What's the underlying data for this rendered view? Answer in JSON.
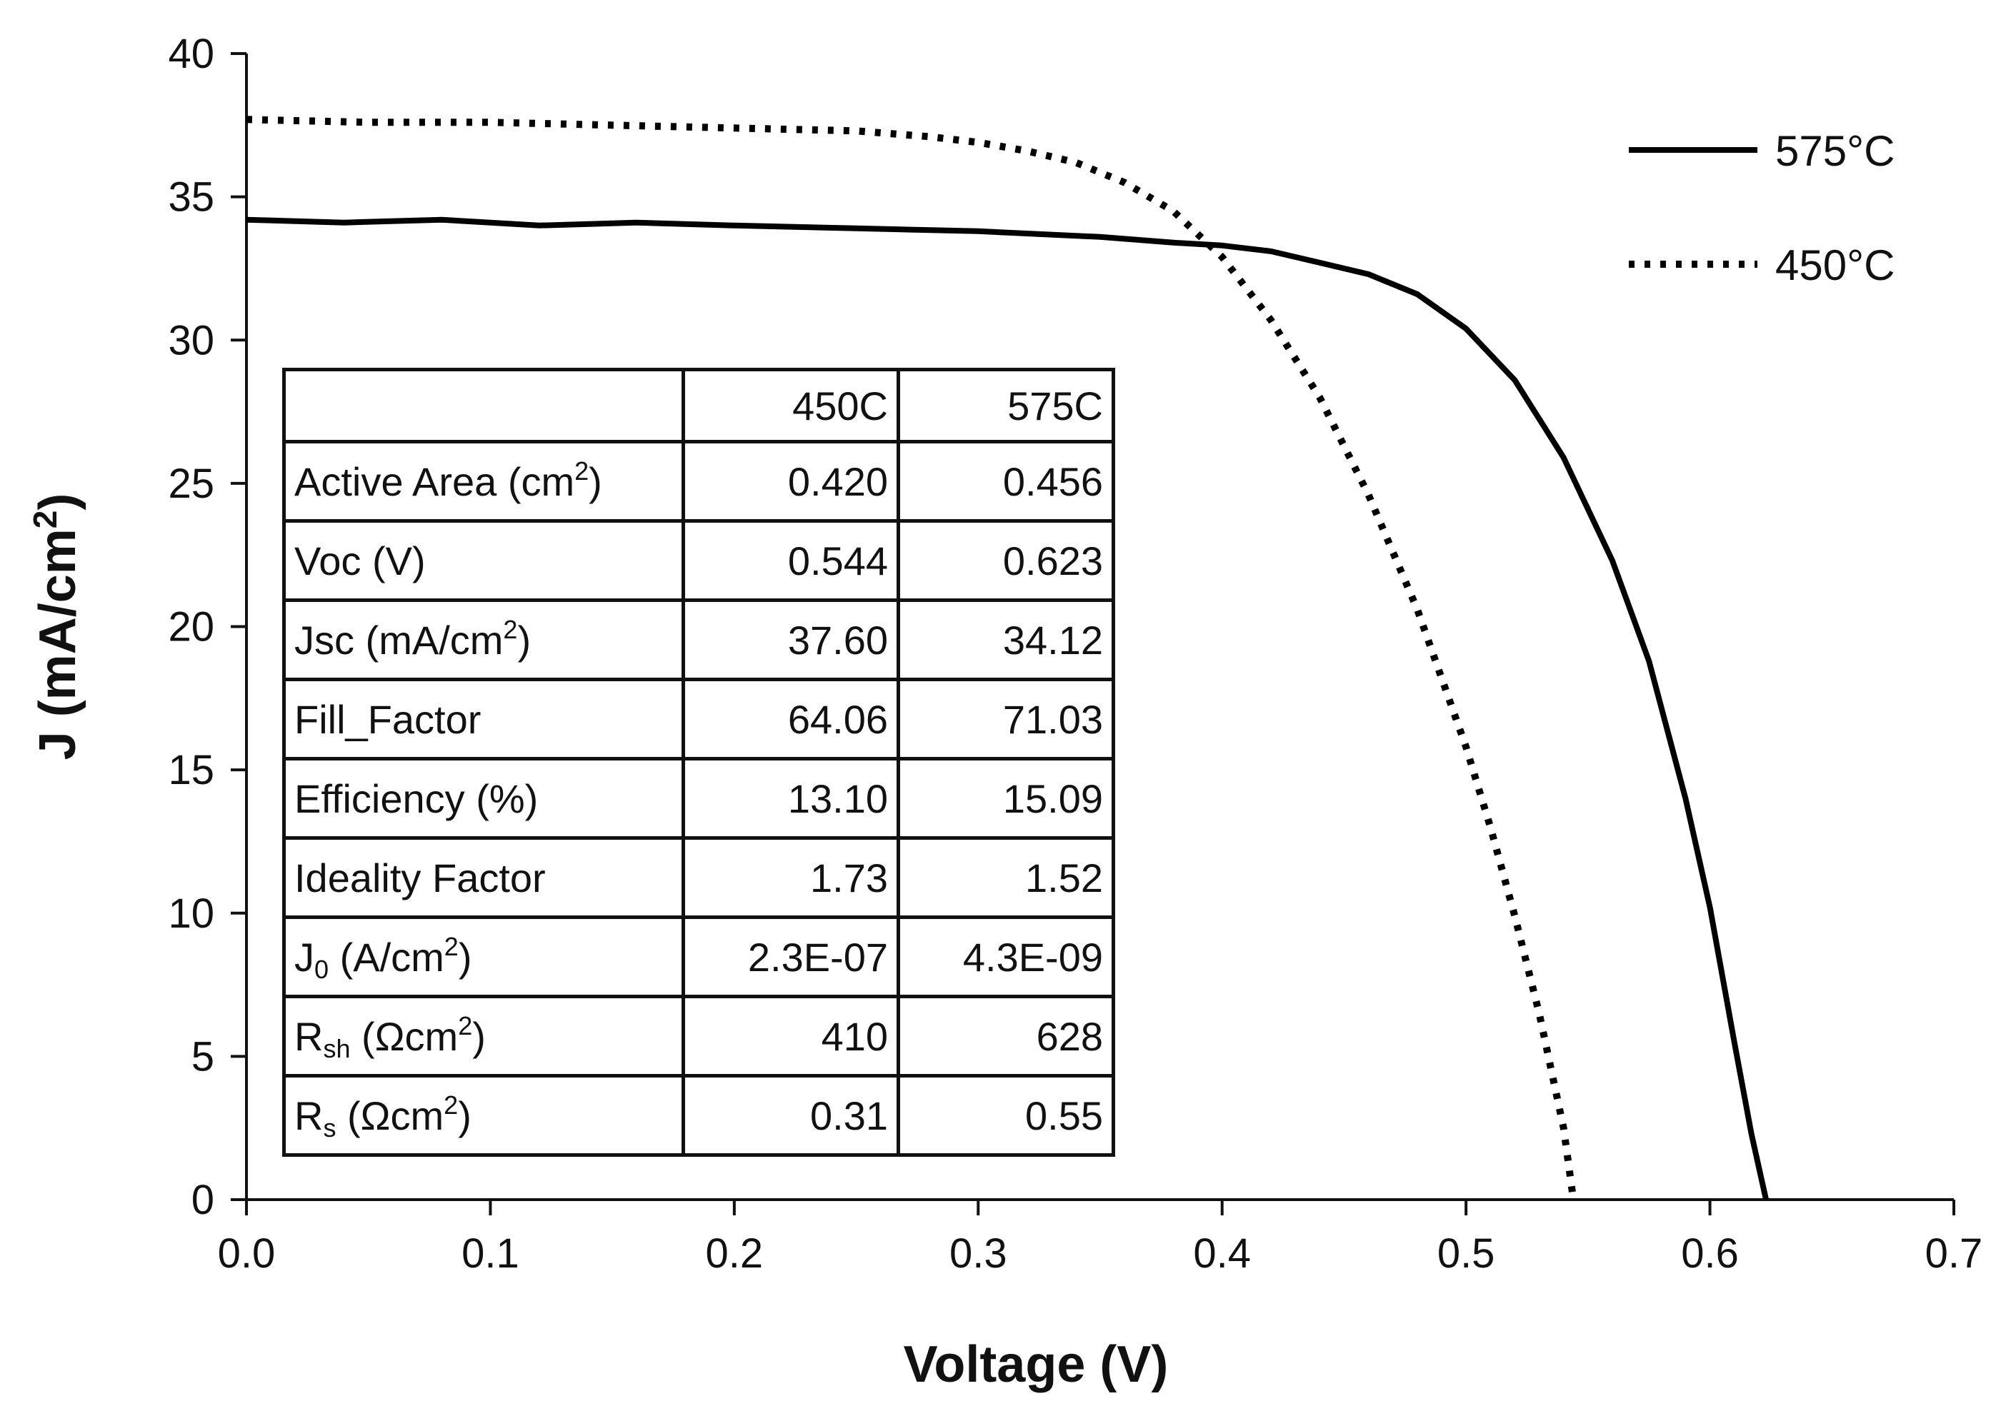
{
  "chart_data": {
    "type": "line",
    "title": "",
    "xlabel": "Voltage (V)",
    "ylabel_parts": {
      "base": "J (mA/cm",
      "sup": "2",
      "end": ")"
    },
    "xlim": [
      0,
      0.7
    ],
    "ylim": [
      0,
      40
    ],
    "x_ticks": [
      "0.0",
      "0.1",
      "0.2",
      "0.3",
      "0.4",
      "0.5",
      "0.6",
      "0.7"
    ],
    "y_ticks": [
      "0",
      "5",
      "10",
      "15",
      "20",
      "25",
      "30",
      "35",
      "40"
    ],
    "legend_position": "top-right",
    "series": [
      {
        "name": "575°C",
        "style": "solid",
        "color": "#000000",
        "points": [
          [
            0.0,
            34.2
          ],
          [
            0.04,
            34.1
          ],
          [
            0.08,
            34.2
          ],
          [
            0.12,
            34.0
          ],
          [
            0.16,
            34.1
          ],
          [
            0.2,
            34.0
          ],
          [
            0.25,
            33.9
          ],
          [
            0.3,
            33.8
          ],
          [
            0.35,
            33.6
          ],
          [
            0.38,
            33.4
          ],
          [
            0.4,
            33.3
          ],
          [
            0.42,
            33.1
          ],
          [
            0.44,
            32.7
          ],
          [
            0.46,
            32.3
          ],
          [
            0.48,
            31.6
          ],
          [
            0.5,
            30.4
          ],
          [
            0.52,
            28.6
          ],
          [
            0.54,
            25.9
          ],
          [
            0.56,
            22.3
          ],
          [
            0.575,
            18.8
          ],
          [
            0.59,
            14.0
          ],
          [
            0.6,
            10.2
          ],
          [
            0.61,
            5.5
          ],
          [
            0.617,
            2.3
          ],
          [
            0.623,
            0.0
          ]
        ]
      },
      {
        "name": "450°C",
        "style": "dotted",
        "color": "#000000",
        "points": [
          [
            0.0,
            37.7
          ],
          [
            0.05,
            37.6
          ],
          [
            0.1,
            37.6
          ],
          [
            0.15,
            37.5
          ],
          [
            0.2,
            37.4
          ],
          [
            0.25,
            37.3
          ],
          [
            0.28,
            37.1
          ],
          [
            0.3,
            36.9
          ],
          [
            0.32,
            36.6
          ],
          [
            0.34,
            36.2
          ],
          [
            0.36,
            35.5
          ],
          [
            0.38,
            34.5
          ],
          [
            0.4,
            32.9
          ],
          [
            0.42,
            30.7
          ],
          [
            0.44,
            28.0
          ],
          [
            0.46,
            24.6
          ],
          [
            0.48,
            20.6
          ],
          [
            0.5,
            15.8
          ],
          [
            0.51,
            13.0
          ],
          [
            0.52,
            9.9
          ],
          [
            0.53,
            6.5
          ],
          [
            0.54,
            2.5
          ],
          [
            0.544,
            0.0
          ]
        ]
      }
    ]
  },
  "table": {
    "columns": [
      "",
      "450C",
      "575C"
    ],
    "rows": [
      {
        "label": "Active Area (cm",
        "sup": "2",
        "after": ")",
        "v450": "0.420",
        "v575": "0.456"
      },
      {
        "label": "Voc (V)",
        "v450": "0.544",
        "v575": "0.623"
      },
      {
        "label": "Jsc (mA/cm",
        "sup": "2",
        "after": ")",
        "v450": "37.60",
        "v575": "34.12"
      },
      {
        "label": "Fill_Factor",
        "v450": "64.06",
        "v575": "71.03"
      },
      {
        "label": "Efficiency (%)",
        "v450": "13.10",
        "v575": "15.09"
      },
      {
        "label": "Ideality Factor",
        "v450": "1.73",
        "v575": "1.52"
      },
      {
        "label": "J",
        "sub": "0",
        "label2": " (A/cm",
        "sup": "2",
        "after": ")",
        "v450": "2.3E-07",
        "v575": "4.3E-09"
      },
      {
        "label": "R",
        "sub": "sh",
        "label2": " (Ωcm",
        "sup": "2",
        "after": ")",
        "v450": "410",
        "v575": "628"
      },
      {
        "label": "R",
        "sub": "s",
        "label2": " (Ωcm",
        "sup": "2",
        "after": ")",
        "v450": "0.31",
        "v575": "0.55"
      }
    ]
  }
}
